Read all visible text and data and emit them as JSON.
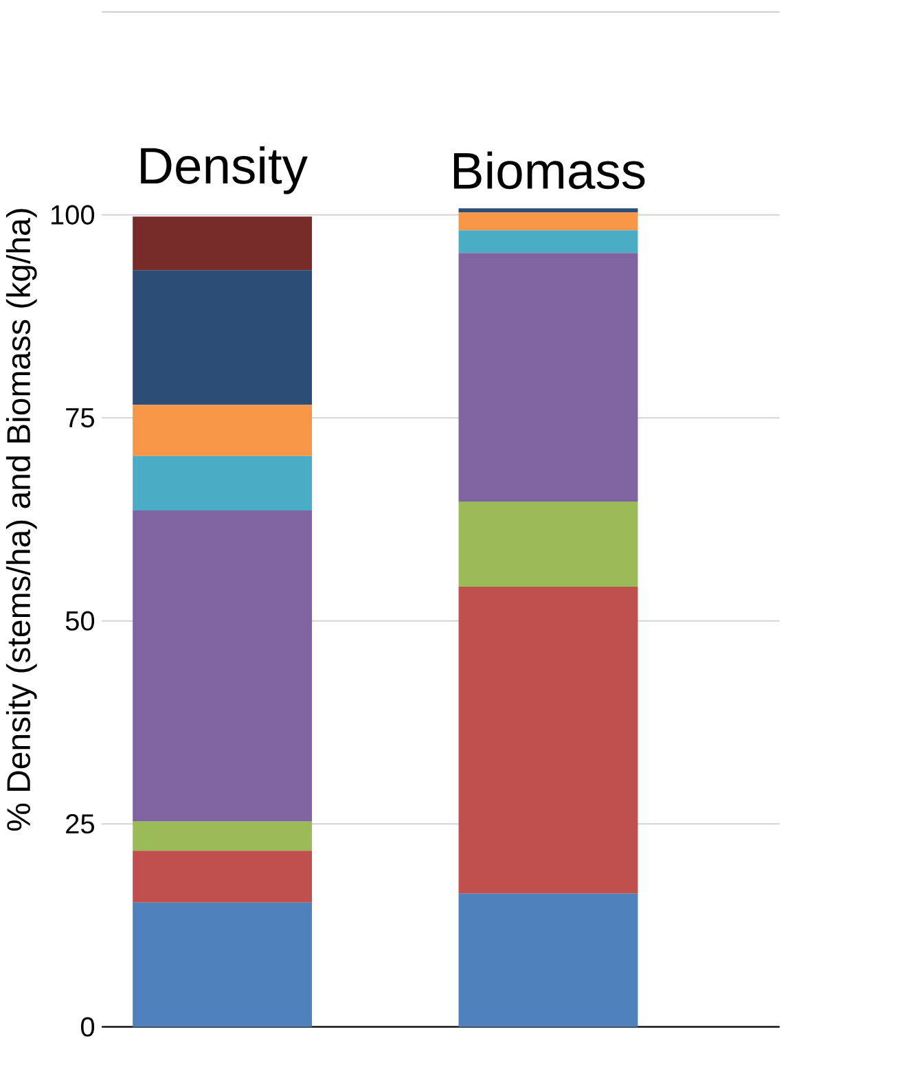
{
  "chart_data": {
    "type": "bar",
    "stacked": true,
    "ylabel": "% Density (stems/ha) and Biomass (kg/ha)",
    "categories": [
      "Density",
      "Biomass"
    ],
    "series": [
      {
        "color": "#4f81bd",
        "values": [
          15.3,
          16.4
        ]
      },
      {
        "color": "#c0504d",
        "values": [
          6.4,
          37.8
        ]
      },
      {
        "color": "#9bbb59",
        "values": [
          3.6,
          10.5
        ]
      },
      {
        "color": "#8064a2",
        "values": [
          38.3,
          30.6
        ]
      },
      {
        "color": "#4bacc6",
        "values": [
          6.7,
          2.8
        ]
      },
      {
        "color": "#f79646",
        "values": [
          6.3,
          2.2
        ]
      },
      {
        "color": "#2c4d75",
        "values": [
          16.6,
          0.5
        ]
      },
      {
        "color": "#772c2a",
        "values": [
          6.6,
          0
        ]
      }
    ],
    "ylim": [
      0,
      125
    ],
    "yticks": [
      0,
      25,
      50,
      75,
      100,
      {
        "value": 125,
        "label": null
      }
    ],
    "grid": "y"
  }
}
